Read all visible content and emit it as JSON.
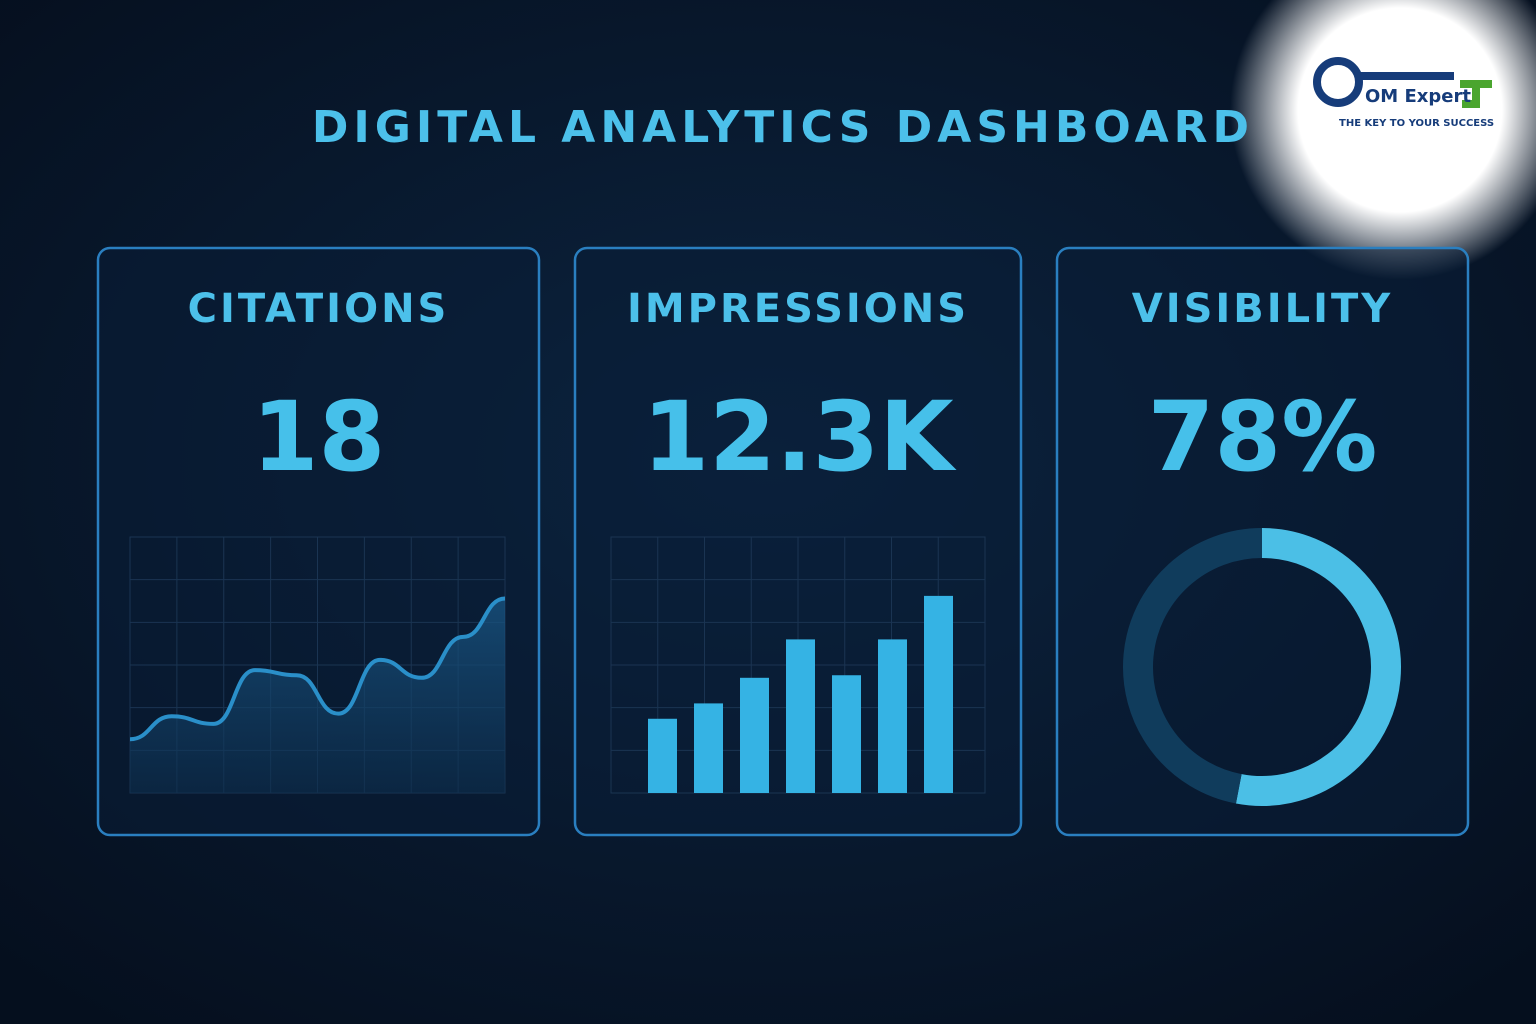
{
  "header": {
    "title": "DIGITAL ANALYTICS DASHBOARD"
  },
  "logo": {
    "name": "OM Expert",
    "tagline": "THE KEY TO YOUR SUCCESS"
  },
  "cards": [
    {
      "label": "CITATIONS",
      "value": "18"
    },
    {
      "label": "IMPRESSIONS",
      "value": "12.3K"
    },
    {
      "label": "VISIBILITY",
      "value": "78%"
    }
  ],
  "chart_data": [
    {
      "type": "area",
      "values": [
        21,
        30,
        27,
        48,
        46,
        31,
        52,
        45,
        61,
        76
      ],
      "ylim": [
        0,
        100
      ],
      "color": "#2a8fc9"
    },
    {
      "type": "bar",
      "values": [
        29,
        35,
        45,
        60,
        46,
        60,
        77
      ],
      "ylim": [
        0,
        100
      ],
      "color": "#35b3e4"
    },
    {
      "type": "pie",
      "values": [
        53,
        47
      ],
      "colors": [
        "#4bbfe6",
        "#103c5c"
      ]
    }
  ]
}
